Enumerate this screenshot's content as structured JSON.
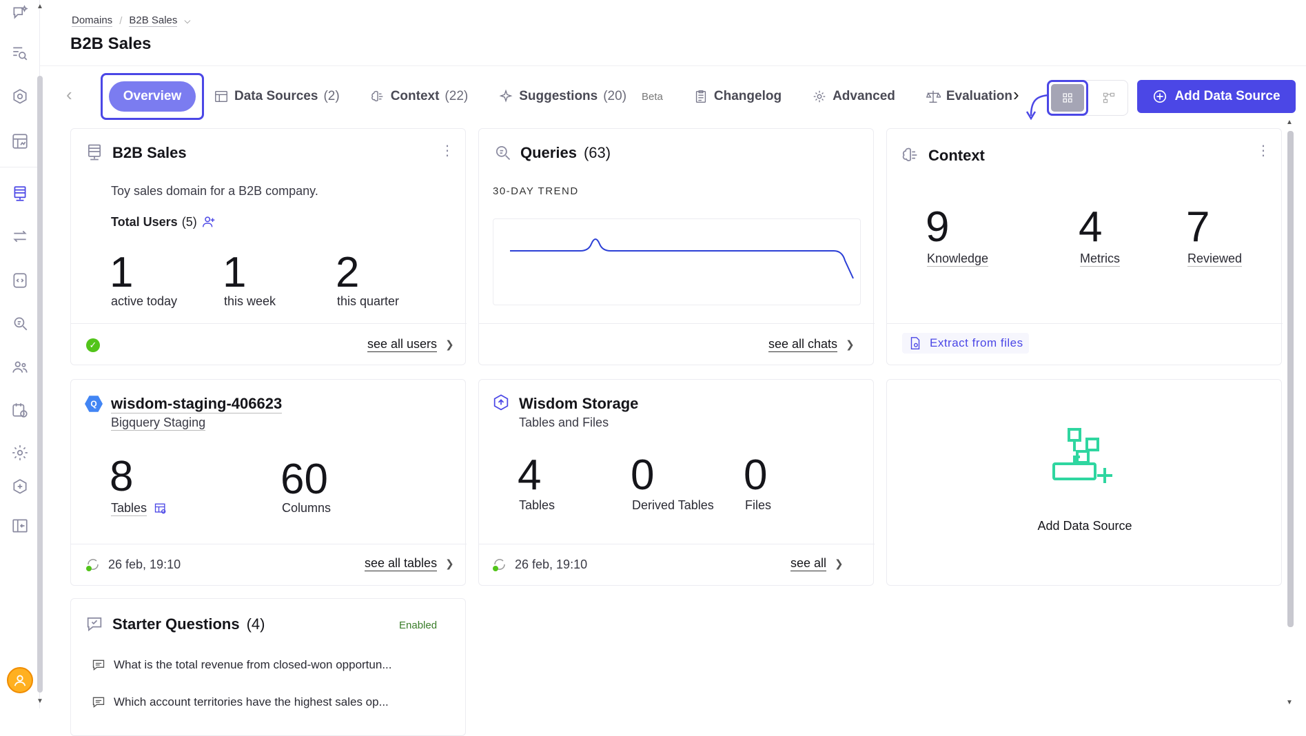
{
  "breadcrumb": {
    "root": "Domains",
    "current": "B2B Sales"
  },
  "page_title": "B2B Sales",
  "tabs": {
    "overview": "Overview",
    "data_sources": {
      "label": "Data Sources",
      "count": "(2)"
    },
    "context": {
      "label": "Context",
      "count": "(22)"
    },
    "suggestions": {
      "label": "Suggestions",
      "count": "(20)",
      "badge": "Beta"
    },
    "changelog": {
      "label": "Changelog"
    },
    "advanced": {
      "label": "Advanced"
    },
    "evaluation": {
      "label": "Evaluation"
    }
  },
  "add_data_source_button": "Add Data Source",
  "domain_card": {
    "title": "B2B Sales",
    "description": "Toy sales domain for a B2B company.",
    "total_users_label": "Total Users",
    "total_users_count": "(5)",
    "stats": [
      {
        "value": "1",
        "label": "active today"
      },
      {
        "value": "1",
        "label": "this week"
      },
      {
        "value": "2",
        "label": "this quarter"
      }
    ],
    "link": "see all users"
  },
  "queries_card": {
    "title": "Queries",
    "count": "(63)",
    "trend_label": "30-DAY TREND",
    "link": "see all chats"
  },
  "context_card": {
    "title": "Context",
    "stats": [
      {
        "value": "9",
        "label": "Knowledge"
      },
      {
        "value": "4",
        "label": "Metrics"
      },
      {
        "value": "7",
        "label": "Reviewed"
      }
    ],
    "extract_link": "Extract from files"
  },
  "bigquery_card": {
    "title": "wisdom-staging-406623",
    "subtitle": "Bigquery Staging",
    "stats": [
      {
        "value": "8",
        "label": "Tables"
      },
      {
        "value": "60",
        "label": "Columns"
      }
    ],
    "timestamp": "26 feb, 19:10",
    "link": "see all tables"
  },
  "storage_card": {
    "title": "Wisdom Storage",
    "subtitle": "Tables and Files",
    "stats": [
      {
        "value": "4",
        "label": "Tables"
      },
      {
        "value": "0",
        "label": "Derived Tables"
      },
      {
        "value": "0",
        "label": "Files"
      }
    ],
    "timestamp": "26 feb, 19:10",
    "link": "see all"
  },
  "add_source_card": {
    "label": "Add Data Source"
  },
  "starter_card": {
    "title": "Starter Questions",
    "count": "(4)",
    "status": "Enabled",
    "questions": [
      "What is the total revenue from closed-won opportun...",
      "Which account territories have the highest sales op..."
    ]
  },
  "colors": {
    "accent": "#4b47e6",
    "tab_active": "#7b7cf0",
    "success": "#52c41a",
    "teal": "#2fd6a0",
    "enabled": "#3a7d2a"
  }
}
